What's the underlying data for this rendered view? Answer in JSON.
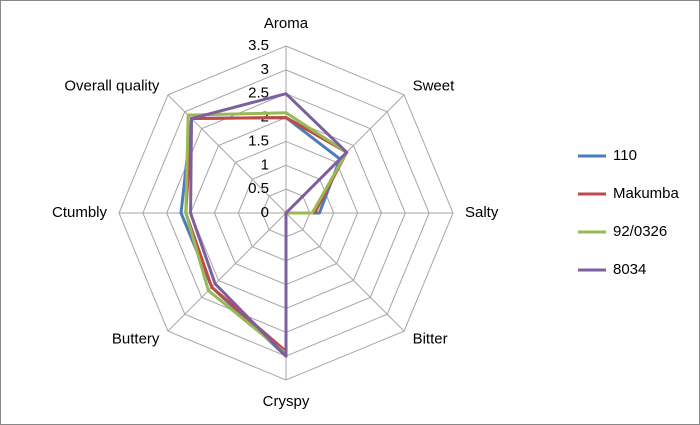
{
  "chart_data": {
    "type": "radar",
    "categories": [
      "Aroma",
      "Sweet",
      "Salty",
      "Bitter",
      "Cryspy",
      "Buttery",
      "Ctumbly",
      "Overall quality"
    ],
    "ylim": [
      0,
      3.5
    ],
    "yticks": [
      0,
      0.5,
      1,
      1.5,
      2,
      2.5,
      3,
      3.5
    ],
    "grid": true,
    "legend": "right",
    "series": [
      {
        "name": "110",
        "color": "#4a7ebb",
        "values": [
          2.0,
          1.6,
          0.7,
          0,
          3.0,
          2.2,
          2.2,
          2.8
        ]
      },
      {
        "name": "Makumba",
        "color": "#be4b48",
        "values": [
          2.0,
          1.8,
          0.6,
          0,
          2.9,
          2.2,
          2.1,
          2.8
        ]
      },
      {
        "name": "92/0326",
        "color": "#98b954",
        "values": [
          2.1,
          1.8,
          0.55,
          0,
          2.95,
          2.3,
          2.1,
          2.9
        ]
      },
      {
        "name": "8034",
        "color": "#7d5fa0",
        "values": [
          2.5,
          1.8,
          0,
          0,
          3.0,
          2.1,
          2.0,
          2.8
        ]
      }
    ]
  }
}
